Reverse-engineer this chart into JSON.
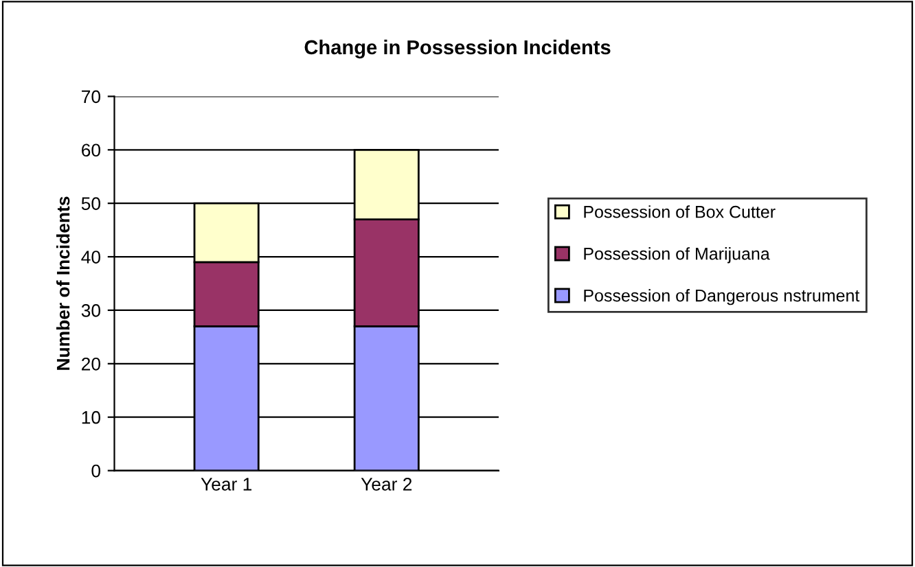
{
  "chart_data": {
    "type": "bar",
    "stacked": true,
    "title": "Change in Possession Incidents",
    "ylabel": "Number of Incidents",
    "categories": [
      "Year 1",
      "Year 2"
    ],
    "series": [
      {
        "name": "Possession of Dangerous nstrument",
        "color": "#9999ff",
        "values": [
          27,
          27
        ]
      },
      {
        "name": "Possession of Marijuana",
        "color": "#993366",
        "values": [
          12,
          20
        ]
      },
      {
        "name": "Possession of Box Cutter",
        "color": "#ffffcc",
        "values": [
          11,
          13
        ]
      }
    ],
    "ylim": [
      0,
      70
    ],
    "yticks": [
      0,
      10,
      20,
      30,
      40,
      50,
      60,
      70
    ],
    "grid": "y",
    "legend": "right"
  }
}
